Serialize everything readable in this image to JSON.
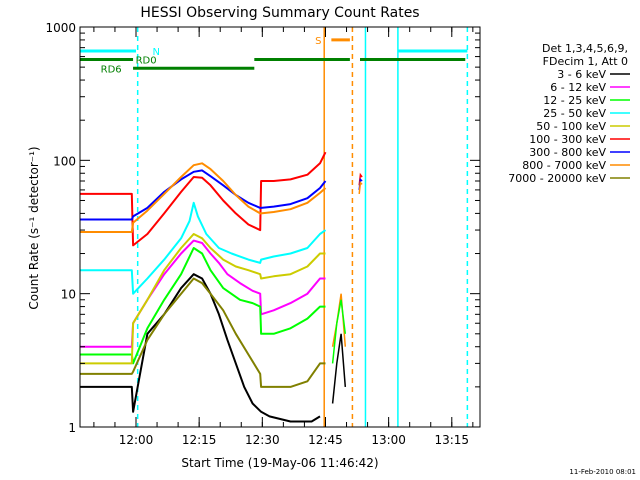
{
  "chart_data": {
    "type": "line",
    "title": "HESSI Observing Summary Count Rates",
    "xlabel": "Start Time (19-May-06 11:46:42)",
    "ylabel": "Count Rate (s⁻¹ detector⁻¹)",
    "yscale": "log",
    "ylim": [
      1,
      1000
    ],
    "xlim_minutes": [
      0,
      95
    ],
    "x_ticks": [
      {
        "label": "12:00",
        "minute": 13.3
      },
      {
        "label": "12:15",
        "minute": 28.3
      },
      {
        "label": "12:30",
        "minute": 43.3
      },
      {
        "label": "12:45",
        "minute": 58.3
      },
      {
        "label": "13:00",
        "minute": 73.3
      },
      {
        "label": "13:15",
        "minute": 88.3
      }
    ],
    "y_ticks": [
      {
        "label": "1",
        "value": 1
      },
      {
        "label": "10",
        "value": 10
      },
      {
        "label": "100",
        "value": 100
      },
      {
        "label": "1000",
        "value": 1000
      }
    ],
    "legend_position": "right",
    "legend_header": [
      "Det 1,3,4,5,6,9,",
      "FDecim 1, Att 0"
    ],
    "series": [
      {
        "name": "3 - 6 keV",
        "color": "#000000",
        "points": [
          [
            0,
            2
          ],
          [
            12.3,
            2
          ],
          [
            12.6,
            1.3
          ],
          [
            16,
            5
          ],
          [
            20,
            7
          ],
          [
            24,
            11
          ],
          [
            27,
            14
          ],
          [
            29,
            13
          ],
          [
            31,
            10
          ],
          [
            33,
            7
          ],
          [
            35,
            4.5
          ],
          [
            37,
            3
          ],
          [
            39,
            2
          ],
          [
            41,
            1.5
          ],
          [
            43,
            1.3
          ],
          [
            45,
            1.2
          ],
          [
            50,
            1.1
          ],
          [
            55,
            1.1
          ],
          [
            57,
            1.2
          ]
        ]
      },
      {
        "name": "6 - 12 keV",
        "color": "#ff00ff",
        "points": [
          [
            0,
            4
          ],
          [
            12.3,
            4
          ],
          [
            12.6,
            6
          ],
          [
            16,
            9
          ],
          [
            20,
            14
          ],
          [
            24,
            20
          ],
          [
            27,
            25
          ],
          [
            29,
            24
          ],
          [
            31,
            20
          ],
          [
            33,
            17
          ],
          [
            35,
            14
          ],
          [
            38,
            12
          ],
          [
            41,
            10.5
          ],
          [
            42.8,
            10
          ],
          [
            43,
            7
          ],
          [
            46,
            7.5
          ],
          [
            50,
            8.5
          ],
          [
            54,
            10
          ],
          [
            57,
            13
          ],
          [
            58.3,
            13
          ]
        ]
      },
      {
        "name": "12 - 25 keV",
        "color": "#00ff00",
        "points": [
          [
            0,
            3.5
          ],
          [
            12.3,
            3.5
          ],
          [
            12.6,
            3
          ],
          [
            16,
            5.5
          ],
          [
            20,
            9
          ],
          [
            24,
            14
          ],
          [
            27,
            22
          ],
          [
            29,
            20
          ],
          [
            31,
            15
          ],
          [
            34,
            11
          ],
          [
            38,
            9
          ],
          [
            41,
            8.5
          ],
          [
            42.8,
            8
          ],
          [
            43,
            5
          ],
          [
            46,
            5
          ],
          [
            50,
            5.5
          ],
          [
            54,
            6.5
          ],
          [
            57,
            8
          ],
          [
            58.3,
            8
          ]
        ]
      },
      {
        "name": "25 - 50 keV",
        "color": "#00ffff",
        "points": [
          [
            0,
            15
          ],
          [
            12.3,
            15
          ],
          [
            12.6,
            10
          ],
          [
            16,
            13
          ],
          [
            20,
            18
          ],
          [
            24,
            26
          ],
          [
            26,
            35
          ],
          [
            27,
            48
          ],
          [
            28,
            38
          ],
          [
            30,
            28
          ],
          [
            33,
            22
          ],
          [
            36,
            20
          ],
          [
            40,
            18
          ],
          [
            42.8,
            17
          ],
          [
            43,
            18
          ],
          [
            46,
            19
          ],
          [
            50,
            20
          ],
          [
            54,
            22
          ],
          [
            57,
            28
          ],
          [
            58.3,
            30
          ]
        ]
      },
      {
        "name": "50 - 100 keV",
        "color": "#cccc00",
        "points": [
          [
            0,
            3
          ],
          [
            12.3,
            3
          ],
          [
            12.6,
            6
          ],
          [
            16,
            9
          ],
          [
            20,
            15
          ],
          [
            24,
            22
          ],
          [
            27,
            28
          ],
          [
            29,
            26
          ],
          [
            31,
            22
          ],
          [
            34,
            18
          ],
          [
            37,
            16
          ],
          [
            40,
            15
          ],
          [
            42.8,
            14
          ],
          [
            43,
            13
          ],
          [
            46,
            13.5
          ],
          [
            50,
            14
          ],
          [
            54,
            16
          ],
          [
            57,
            20
          ],
          [
            58.3,
            20
          ]
        ]
      },
      {
        "name": "100 - 300 keV",
        "color": "#ff0000",
        "points": [
          [
            0,
            56
          ],
          [
            12.3,
            56
          ],
          [
            12.6,
            23
          ],
          [
            16,
            28
          ],
          [
            20,
            40
          ],
          [
            24,
            58
          ],
          [
            27,
            75
          ],
          [
            29,
            74
          ],
          [
            31,
            65
          ],
          [
            34,
            50
          ],
          [
            37,
            40
          ],
          [
            40,
            33
          ],
          [
            42.8,
            30
          ],
          [
            43,
            70
          ],
          [
            46,
            70
          ],
          [
            50,
            72
          ],
          [
            54,
            78
          ],
          [
            57,
            95
          ],
          [
            58.3,
            115
          ]
        ]
      },
      {
        "name": "300 - 800 keV",
        "color": "#0000ff",
        "points": [
          [
            0,
            36
          ],
          [
            12.3,
            36
          ],
          [
            12.6,
            38
          ],
          [
            16,
            44
          ],
          [
            20,
            58
          ],
          [
            24,
            72
          ],
          [
            27,
            82
          ],
          [
            29,
            84
          ],
          [
            31,
            76
          ],
          [
            34,
            65
          ],
          [
            37,
            55
          ],
          [
            40,
            48
          ],
          [
            42.8,
            44
          ],
          [
            43,
            44
          ],
          [
            46,
            45
          ],
          [
            50,
            47
          ],
          [
            54,
            52
          ],
          [
            57,
            62
          ],
          [
            58.3,
            70
          ]
        ]
      },
      {
        "name": "800 - 7000 keV",
        "color": "#ff8c00",
        "points": [
          [
            0,
            29
          ],
          [
            12.3,
            29
          ],
          [
            12.6,
            34
          ],
          [
            16,
            42
          ],
          [
            20,
            56
          ],
          [
            24,
            75
          ],
          [
            27,
            92
          ],
          [
            29,
            95
          ],
          [
            31,
            86
          ],
          [
            34,
            70
          ],
          [
            37,
            55
          ],
          [
            40,
            45
          ],
          [
            42.8,
            40
          ],
          [
            43,
            40
          ],
          [
            46,
            41
          ],
          [
            50,
            43
          ],
          [
            54,
            48
          ],
          [
            57,
            57
          ],
          [
            58.3,
            62
          ]
        ]
      },
      {
        "name": "7000 - 20000 keV",
        "color": "#808000",
        "points": [
          [
            0,
            2.5
          ],
          [
            12.3,
            2.5
          ],
          [
            12.6,
            2.6
          ],
          [
            16,
            4.5
          ],
          [
            20,
            7
          ],
          [
            24,
            10
          ],
          [
            27,
            13
          ],
          [
            29,
            12
          ],
          [
            31,
            10
          ],
          [
            34,
            7.5
          ],
          [
            37,
            5
          ],
          [
            40,
            3.5
          ],
          [
            42.8,
            2.5
          ],
          [
            43,
            2
          ],
          [
            46,
            2
          ],
          [
            50,
            2
          ],
          [
            54,
            2.2
          ],
          [
            57,
            3
          ],
          [
            58.3,
            3
          ]
        ]
      }
    ],
    "burst_points": [
      {
        "color": "#ff8c00",
        "values": [
          [
            60,
            4
          ],
          [
            61,
            6
          ],
          [
            62,
            10
          ],
          [
            63,
            4
          ]
        ]
      },
      {
        "color": "#000000",
        "values": [
          [
            60,
            1.5
          ],
          [
            61,
            3
          ],
          [
            62,
            5
          ],
          [
            63,
            2
          ]
        ]
      },
      {
        "color": "#00ff00",
        "values": [
          [
            60,
            3
          ],
          [
            61,
            6
          ],
          [
            62,
            9
          ],
          [
            63,
            5
          ]
        ]
      },
      {
        "color": "#ff0000",
        "values": [
          [
            66.3,
            65
          ],
          [
            66.6,
            78
          ],
          [
            67,
            75
          ]
        ]
      },
      {
        "color": "#0000ff",
        "values": [
          [
            66.3,
            60
          ],
          [
            66.6,
            72
          ],
          [
            67,
            70
          ]
        ]
      },
      {
        "color": "#ff8c00",
        "values": [
          [
            66.3,
            56
          ],
          [
            66.6,
            68
          ],
          [
            67,
            66
          ]
        ]
      }
    ],
    "vertical_lines": [
      {
        "minute": 13.7,
        "color": "#00ffff",
        "style": "dashed"
      },
      {
        "minute": 58.0,
        "color": "#ff8c00",
        "style": "solid"
      },
      {
        "minute": 64.7,
        "color": "#ff8c00",
        "style": "dashed"
      },
      {
        "minute": 67.8,
        "color": "#00ffff",
        "style": "solid"
      },
      {
        "minute": 75.5,
        "color": "#00ffff",
        "style": "solid"
      },
      {
        "minute": 92.0,
        "color": "#00ffff",
        "style": "dashed"
      }
    ],
    "flag_bars": [
      {
        "color": "#00ffff",
        "level": 660,
        "segments": [
          [
            0,
            13.3
          ],
          [
            75.5,
            92
          ]
        ]
      },
      {
        "color": "#ff8c00",
        "level": 800,
        "segments": [
          [
            59.7,
            64.1
          ]
        ]
      },
      {
        "color": "#008000",
        "level": 570,
        "segments": [
          [
            0,
            12.6
          ],
          [
            41.4,
            64.1
          ],
          [
            66.5,
            91.5
          ]
        ]
      },
      {
        "color": "#008000",
        "level": 490,
        "segments": [
          [
            12.6,
            41.4
          ]
        ]
      }
    ],
    "flag_labels": [
      {
        "text": "N",
        "color": "#00ffff",
        "minute": 18.1,
        "value": 660
      },
      {
        "text": "S",
        "color": "#ff8c00",
        "minute": 56.6,
        "value": 800
      },
      {
        "text": "RD0",
        "color": "#008000",
        "minute": 15.7,
        "value": 570
      },
      {
        "text": "RD6",
        "color": "#008000",
        "minute": 7.4,
        "value": 490
      }
    ]
  },
  "footer": {
    "timestamp": "11-Feb-2010 08:01"
  }
}
